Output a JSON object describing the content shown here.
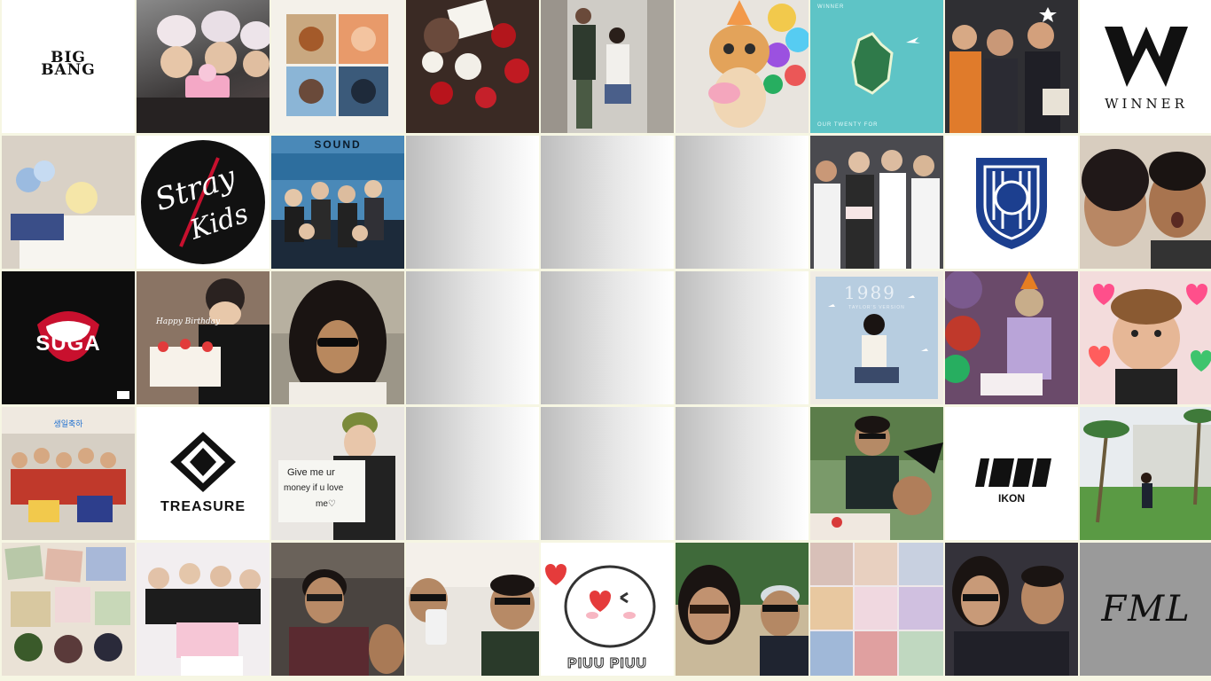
{
  "tiles": {
    "bigbang": {
      "text_top": "BIG",
      "text_bottom": "BANG"
    },
    "winner": {
      "text": "WINNER"
    },
    "winner_album": {
      "brand": "WINNER",
      "caption": "OUR TWENTY FOR"
    },
    "stray_kids": {
      "line1": "Stray",
      "line2": "Kids"
    },
    "sound": {
      "text": "SOUND"
    },
    "suga": {
      "text": "SUGA"
    },
    "birthday_cake": {
      "text": "Happy Birthday"
    },
    "album_1989": {
      "text": "1989",
      "subtitle": "TAYLOR'S VERSION"
    },
    "banner": {
      "text": "생일축하"
    },
    "treasure": {
      "text": "TREASURE"
    },
    "sign": {
      "line1": "Give me ur",
      "line2": "money if u love",
      "line3": "me♡"
    },
    "ikon": {
      "text": "IKON"
    },
    "piuu": {
      "text": "PIUU PIUU"
    },
    "fml": {
      "text": "FML"
    }
  },
  "colors": {
    "page_background": "#f6f6e3",
    "placeholder_gradient": [
      "#bdbdbd",
      "#ffffff"
    ],
    "suga_red": "#c8102e",
    "treasure_black": "#111111",
    "ikon_black": "#111111",
    "fml_gray": "#9a9a9a"
  }
}
